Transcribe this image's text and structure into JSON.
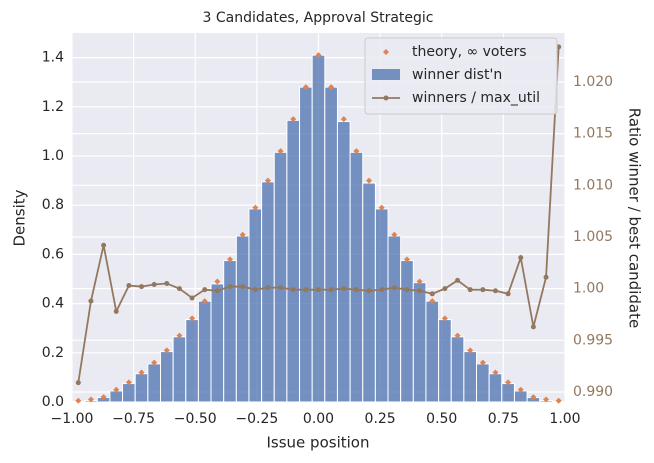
{
  "chart_data": {
    "type": "histogram",
    "title": "3 Candidates, Approval Strategic",
    "x_label": "Issue position",
    "y_label": "Density",
    "y2_label": "Ratio winner / best candidate",
    "bins": [
      -1.0,
      -0.9487,
      -0.8974,
      -0.8462,
      -0.7949,
      -0.7436,
      -0.6923,
      -0.641,
      -0.5897,
      -0.5385,
      -0.4872,
      -0.4359,
      -0.3846,
      -0.3333,
      -0.2821,
      -0.2308,
      -0.1795,
      -0.1282,
      -0.0769,
      -0.0256,
      0.0256,
      0.0769,
      0.1282,
      0.1795,
      0.2308,
      0.2821,
      0.3333,
      0.3846,
      0.4359,
      0.4872,
      0.5385,
      0.5897,
      0.641,
      0.6923,
      0.7436,
      0.7949,
      0.8462,
      0.8974,
      0.9487,
      1.0
    ],
    "x": [
      -0.9744,
      -0.9231,
      -0.8718,
      -0.8205,
      -0.7692,
      -0.7179,
      -0.6667,
      -0.6154,
      -0.5641,
      -0.5128,
      -0.4615,
      -0.4103,
      -0.359,
      -0.3077,
      -0.2564,
      -0.2051,
      -0.1538,
      -0.1026,
      -0.0513,
      0.0,
      0.0513,
      0.1026,
      0.1538,
      0.2051,
      0.2564,
      0.3077,
      0.359,
      0.4103,
      0.4615,
      0.5128,
      0.5641,
      0.6154,
      0.6667,
      0.7179,
      0.7692,
      0.8205,
      0.8718,
      0.9231,
      0.9744
    ],
    "series": [
      {
        "name": "theory, ∞ voters",
        "mark": "scatter",
        "color": "#dd8452",
        "values": [
          0.005,
          0.01,
          0.02,
          0.05,
          0.08,
          0.12,
          0.16,
          0.21,
          0.27,
          0.34,
          0.41,
          0.49,
          0.58,
          0.68,
          0.79,
          0.9,
          1.02,
          1.15,
          1.28,
          1.41,
          1.28,
          1.15,
          1.02,
          0.9,
          0.79,
          0.68,
          0.58,
          0.49,
          0.41,
          0.34,
          0.27,
          0.21,
          0.16,
          0.12,
          0.08,
          0.05,
          0.02,
          0.01,
          0.005
        ]
      },
      {
        "name": "winner dist'n",
        "mark": "bar",
        "color": "#4c72b0",
        "values": [
          0.002,
          0.006,
          0.018,
          0.045,
          0.075,
          0.115,
          0.155,
          0.205,
          0.265,
          0.335,
          0.41,
          0.48,
          0.575,
          0.675,
          0.785,
          0.895,
          1.015,
          1.145,
          1.28,
          1.41,
          1.28,
          1.14,
          1.015,
          0.89,
          0.785,
          0.675,
          0.575,
          0.485,
          0.41,
          0.335,
          0.265,
          0.205,
          0.155,
          0.115,
          0.075,
          0.045,
          0.018,
          0.006,
          0.002
        ]
      },
      {
        "name": "winners / max_util",
        "mark": "line",
        "color": "#937860",
        "axis": "y2",
        "values": [
          0.9909,
          0.9988,
          1.0042,
          0.9978,
          1.0003,
          1.0002,
          1.0004,
          1.0005,
          1.0,
          0.9991,
          0.9999,
          0.9998,
          1.0002,
          1.0002,
          0.9999,
          1.0001,
          1.0001,
          0.9999,
          0.9999,
          0.9999,
          0.9999,
          1.0,
          0.9999,
          0.9998,
          0.9999,
          1.0001,
          0.9999,
          0.9998,
          0.9995,
          1.0,
          1.0008,
          0.9999,
          0.9999,
          0.9998,
          0.9995,
          1.003,
          0.9963,
          1.0011,
          1.0234
        ]
      }
    ],
    "xlim": [
      -1.0,
      1.0
    ],
    "xticks": [
      {
        "value": -1.0,
        "label": "−1.00"
      },
      {
        "value": -0.75,
        "label": "−0.75"
      },
      {
        "value": -0.5,
        "label": "−0.50"
      },
      {
        "value": -0.25,
        "label": "−0.25"
      },
      {
        "value": 0,
        "label": "0.00"
      },
      {
        "value": 0.25,
        "label": "0.25"
      },
      {
        "value": 0.5,
        "label": "0.50"
      },
      {
        "value": 0.75,
        "label": "0.75"
      },
      {
        "value": 1.0,
        "label": "1.00"
      }
    ],
    "ylim": [
      0,
      1.5
    ],
    "yticks": [
      {
        "value": 0,
        "label": "0.0"
      },
      0.2,
      0.4,
      0.6,
      0.8,
      {
        "value": 1.0,
        "label": "1.0"
      },
      1.2,
      1.4
    ],
    "y2lim": [
      0.98903,
      1.02474
    ],
    "y2ticks": [
      {
        "value": 0.99,
        "label": "0.990"
      },
      0.995,
      {
        "value": 1.0,
        "label": "1.00"
      },
      1.005,
      {
        "value": 1.01,
        "label": "1.010"
      },
      1.015,
      {
        "value": 1.02,
        "label": "1.020"
      }
    ],
    "grid": true,
    "legend": "upper right"
  }
}
